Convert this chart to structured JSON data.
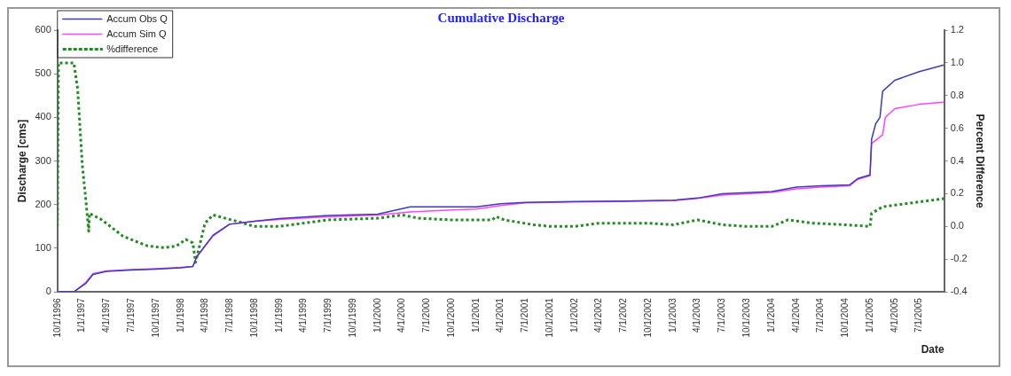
{
  "chart_data": {
    "type": "line",
    "title": "Cumulative Discharge",
    "xlabel": "Date",
    "ylabel": "Discharge [cms]",
    "y2label": "Percent Difference",
    "xlim": [
      "1996-10-01",
      "2005-10-01"
    ],
    "xticks": [
      {
        "value": "1996-10-01",
        "label": "10/1/1996"
      },
      {
        "value": "1997-01-01",
        "label": "1/1/1997"
      },
      {
        "value": "1997-04-01",
        "label": "4/1/1997"
      },
      {
        "value": "1997-07-01",
        "label": "7/1/1997"
      },
      {
        "value": "1997-10-01",
        "label": "10/1/1997"
      },
      {
        "value": "1998-01-01",
        "label": "1/1/1998"
      },
      {
        "value": "1998-04-01",
        "label": "4/1/1998"
      },
      {
        "value": "1998-07-01",
        "label": "7/1/1998"
      },
      {
        "value": "1998-10-01",
        "label": "10/1/1998"
      },
      {
        "value": "1999-01-01",
        "label": "1/1/1999"
      },
      {
        "value": "1999-04-01",
        "label": "4/1/1999"
      },
      {
        "value": "1999-07-01",
        "label": "7/1/1999"
      },
      {
        "value": "1999-10-01",
        "label": "10/1/1999"
      },
      {
        "value": "2000-01-01",
        "label": "1/1/2000"
      },
      {
        "value": "2000-04-01",
        "label": "4/1/2000"
      },
      {
        "value": "2000-07-01",
        "label": "7/1/2000"
      },
      {
        "value": "2000-10-01",
        "label": "10/1/2000"
      },
      {
        "value": "2001-01-01",
        "label": "1/1/2001"
      },
      {
        "value": "2001-04-01",
        "label": "4/1/2001"
      },
      {
        "value": "2001-07-01",
        "label": "7/1/2001"
      },
      {
        "value": "2001-10-01",
        "label": "10/1/2001"
      },
      {
        "value": "2002-01-01",
        "label": "1/1/2002"
      },
      {
        "value": "2002-04-01",
        "label": "4/1/2002"
      },
      {
        "value": "2002-07-01",
        "label": "7/1/2002"
      },
      {
        "value": "2002-10-01",
        "label": "10/1/2002"
      },
      {
        "value": "2003-01-01",
        "label": "1/1/2003"
      },
      {
        "value": "2003-04-01",
        "label": "4/1/2003"
      },
      {
        "value": "2003-07-01",
        "label": "7/1/2003"
      },
      {
        "value": "2003-10-01",
        "label": "10/1/2003"
      },
      {
        "value": "2004-01-01",
        "label": "1/1/2004"
      },
      {
        "value": "2004-04-01",
        "label": "4/1/2004"
      },
      {
        "value": "2004-07-01",
        "label": "7/1/2004"
      },
      {
        "value": "2004-10-01",
        "label": "10/1/2004"
      },
      {
        "value": "2005-01-01",
        "label": "1/1/2005"
      },
      {
        "value": "2005-04-01",
        "label": "4/1/2005"
      },
      {
        "value": "2005-07-01",
        "label": "7/1/2005"
      }
    ],
    "ylim": [
      0,
      600
    ],
    "yticks": [
      0,
      100,
      200,
      300,
      400,
      500,
      600
    ],
    "y2lim": [
      -0.4,
      1.2
    ],
    "y2ticks": [
      {
        "value": -0.4,
        "label": "-0.4"
      },
      {
        "value": -0.2,
        "label": "-0.2"
      },
      {
        "value": 0,
        "label": "0.0"
      },
      {
        "value": 0.2,
        "label": "0.2"
      },
      {
        "value": 0.4,
        "label": "0.4"
      },
      {
        "value": 0.6,
        "label": "0.6"
      },
      {
        "value": 0.8,
        "label": "0.8"
      },
      {
        "value": 1.0,
        "label": "1.0"
      },
      {
        "value": 1.2,
        "label": "1.2"
      }
    ],
    "grid": false,
    "legend": "top left",
    "marker": "none",
    "series": [
      {
        "name": "Accum Obs Q",
        "color": "#3c3cb4",
        "line_style": "solid",
        "x": [
          "1996-10-01",
          "1996-12-01",
          "1997-01-15",
          "1997-02-10",
          "1997-04-01",
          "1997-07-01",
          "1997-10-01",
          "1998-01-01",
          "1998-02-15",
          "1998-03-01",
          "1998-05-01",
          "1998-07-01",
          "1998-10-01",
          "1999-01-01",
          "1999-07-01",
          "2000-01-01",
          "2000-05-01",
          "2000-10-01",
          "2001-01-01",
          "2001-04-01",
          "2001-07-01",
          "2002-01-01",
          "2002-07-01",
          "2003-01-01",
          "2003-04-01",
          "2003-07-01",
          "2004-01-01",
          "2004-04-01",
          "2004-07-01",
          "2004-10-15",
          "2004-11-15",
          "2004-12-30",
          "2005-01-05",
          "2005-01-20",
          "2005-02-05",
          "2005-02-15",
          "2005-04-01",
          "2005-07-01",
          "2005-09-30"
        ],
        "values": [
          0,
          0,
          20,
          40,
          47,
          50,
          52,
          55,
          58,
          80,
          130,
          155,
          162,
          168,
          175,
          178,
          195,
          195,
          195,
          202,
          205,
          207,
          208,
          210,
          215,
          225,
          230,
          240,
          243,
          245,
          260,
          268,
          350,
          385,
          400,
          460,
          485,
          505,
          520
        ]
      },
      {
        "name": "Accum Sim Q",
        "color": "#ff44ff",
        "line_style": "solid",
        "x": [
          "1996-10-01",
          "1996-12-01",
          "1997-01-15",
          "1997-02-10",
          "1997-04-01",
          "1997-07-01",
          "1997-10-01",
          "1998-01-01",
          "1998-02-15",
          "1998-03-01",
          "1998-05-01",
          "1998-07-01",
          "1998-10-01",
          "1999-01-01",
          "1999-07-01",
          "2000-01-01",
          "2000-05-01",
          "2000-10-01",
          "2001-01-01",
          "2001-04-01",
          "2001-07-01",
          "2002-01-01",
          "2002-07-01",
          "2003-01-01",
          "2003-04-01",
          "2003-07-01",
          "2004-01-01",
          "2004-04-01",
          "2004-07-01",
          "2004-10-15",
          "2004-11-15",
          "2004-12-30",
          "2005-01-05",
          "2005-02-15",
          "2005-02-25",
          "2005-04-01",
          "2005-07-01",
          "2005-09-30"
        ],
        "values": [
          0,
          0,
          22,
          42,
          48,
          51,
          53,
          56,
          58,
          80,
          128,
          155,
          162,
          166,
          172,
          176,
          183,
          188,
          190,
          198,
          204,
          206,
          207,
          209,
          214,
          222,
          228,
          236,
          240,
          243,
          258,
          266,
          340,
          360,
          400,
          420,
          430,
          435
        ]
      },
      {
        "name": "%difference",
        "color": "#228b22",
        "line_style": "dotted",
        "axis": "y2",
        "x": [
          "1996-10-01",
          "1996-10-05",
          "1996-12-01",
          "1996-12-15",
          "1997-01-01",
          "1997-01-15",
          "1997-01-25",
          "1997-01-28",
          "1997-03-15",
          "1997-06-01",
          "1997-09-01",
          "1997-11-01",
          "1997-12-15",
          "1998-01-20",
          "1998-02-15",
          "1998-02-25",
          "1998-04-01",
          "1998-05-01",
          "1998-06-15",
          "1998-08-01",
          "1998-10-01",
          "1999-01-01",
          "1999-04-01",
          "1999-07-01",
          "2000-01-01",
          "2000-04-01",
          "2000-06-01",
          "2000-10-01",
          "2001-03-01",
          "2001-03-15",
          "2001-04-15",
          "2001-08-01",
          "2001-10-01",
          "2002-01-01",
          "2002-04-01",
          "2002-10-01",
          "2003-01-01",
          "2003-04-01",
          "2003-07-01",
          "2003-10-01",
          "2004-01-01",
          "2004-03-01",
          "2004-06-01",
          "2004-10-01",
          "2004-12-30",
          "2005-01-05",
          "2005-02-15",
          "2005-04-01",
          "2005-09-30"
        ],
        "values": [
          0.0,
          1.0,
          1.0,
          0.84,
          0.38,
          0.15,
          -0.03,
          0.08,
          0.04,
          -0.06,
          -0.12,
          -0.13,
          -0.12,
          -0.08,
          -0.1,
          -0.22,
          0.02,
          0.07,
          0.05,
          0.03,
          0.0,
          0.0,
          0.02,
          0.04,
          0.05,
          0.07,
          0.05,
          0.04,
          0.04,
          0.06,
          0.04,
          0.01,
          0.0,
          0.0,
          0.02,
          0.02,
          0.01,
          0.04,
          0.01,
          0.0,
          0.0,
          0.04,
          0.02,
          0.01,
          0.0,
          0.08,
          0.12,
          0.13,
          0.17
        ]
      }
    ]
  }
}
